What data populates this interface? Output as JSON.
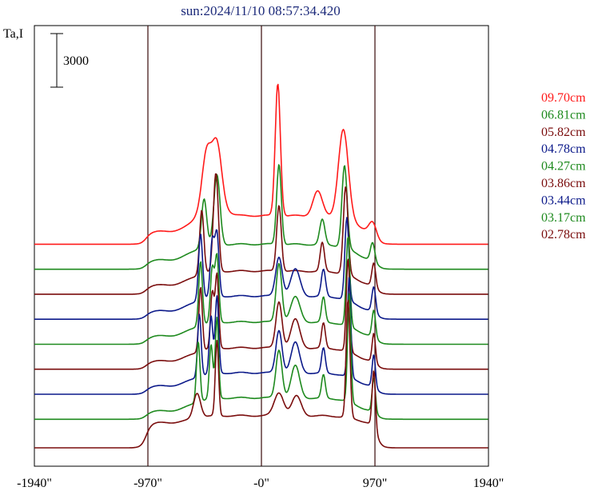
{
  "title": "sun:2024/11/10 08:57:34.420",
  "ylabel": "Ta,I",
  "scalebar_label": "3000",
  "chart_data": {
    "type": "line",
    "title": "sun:2024/11/10 08:57:34.420",
    "ylabel": "Ta,I",
    "scalebar_value": 3000,
    "xlim": [
      -1940,
      1940
    ],
    "x_ticks": [
      {
        "value": -1940,
        "label": "-1940\""
      },
      {
        "value": -970,
        "label": "-970\""
      },
      {
        "value": 0,
        "label": "-0\""
      },
      {
        "value": 970,
        "label": "970\""
      },
      {
        "value": 1940,
        "label": "1940\""
      }
    ],
    "vlines": [
      -970,
      0,
      970
    ],
    "grid": false,
    "legend_position": "right",
    "series": [
      {
        "name": "09.70cm",
        "color": "#ff1a1a",
        "offset": 11400,
        "wing": 700,
        "plat": 1600,
        "peaks": [
          [
            -470,
            2700,
            38
          ],
          [
            -380,
            3050,
            40
          ],
          [
            -420,
            1200,
            80
          ],
          [
            140,
            7400,
            22
          ],
          [
            700,
            5000,
            42
          ],
          [
            480,
            1400,
            40
          ],
          [
            950,
            600,
            30
          ]
        ]
      },
      {
        "name": "06.81cm",
        "color": "#1e8a1e",
        "offset": 10000,
        "wing": 500,
        "plat": 1400,
        "peaks": [
          [
            -490,
            2700,
            22
          ],
          [
            -380,
            3900,
            26
          ],
          [
            150,
            4500,
            20
          ],
          [
            520,
            1400,
            22
          ],
          [
            710,
            4600,
            22
          ],
          [
            950,
            1000,
            18
          ]
        ]
      },
      {
        "name": "05.82cm",
        "color": "#7a0d0d",
        "offset": 8600,
        "wing": 500,
        "plat": 1300,
        "peaks": [
          [
            -510,
            3600,
            18
          ],
          [
            -400,
            3000,
            18
          ],
          [
            -380,
            3400,
            18
          ],
          [
            150,
            3700,
            20
          ],
          [
            520,
            1600,
            18
          ],
          [
            720,
            4900,
            20
          ],
          [
            960,
            1300,
            16
          ]
        ]
      },
      {
        "name": "04.78cm",
        "color": "#0c1a8a",
        "offset": 7200,
        "wing": 450,
        "plat": 1300,
        "peaks": [
          [
            -520,
            3700,
            17
          ],
          [
            -420,
            3100,
            17
          ],
          [
            -380,
            3500,
            17
          ],
          [
            150,
            2200,
            28
          ],
          [
            290,
            1500,
            40
          ],
          [
            530,
            1500,
            18
          ],
          [
            730,
            4600,
            17
          ],
          [
            960,
            1400,
            16
          ]
        ]
      },
      {
        "name": "04.27cm",
        "color": "#1e8a1e",
        "offset": 5800,
        "wing": 450,
        "plat": 1250,
        "peaks": [
          [
            -520,
            3600,
            16
          ],
          [
            -420,
            3000,
            16
          ],
          [
            -380,
            3700,
            16
          ],
          [
            150,
            3300,
            24
          ],
          [
            290,
            1400,
            40
          ],
          [
            530,
            1400,
            16
          ],
          [
            740,
            5000,
            16
          ],
          [
            960,
            1500,
            15
          ]
        ]
      },
      {
        "name": "03.86cm",
        "color": "#7a0d0d",
        "offset": 4400,
        "wing": 450,
        "plat": 1200,
        "peaks": [
          [
            -520,
            3600,
            15
          ],
          [
            -420,
            3100,
            15
          ],
          [
            -380,
            4100,
            15
          ],
          [
            150,
            2600,
            26
          ],
          [
            290,
            1600,
            38
          ],
          [
            530,
            1400,
            16
          ],
          [
            740,
            5200,
            15
          ],
          [
            960,
            1600,
            14
          ]
        ]
      },
      {
        "name": "03.44cm",
        "color": "#0c1a8a",
        "offset": 3000,
        "wing": 450,
        "plat": 1200,
        "peaks": [
          [
            -530,
            3500,
            15
          ],
          [
            -430,
            3200,
            15
          ],
          [
            -380,
            4300,
            15
          ],
          [
            150,
            2400,
            26
          ],
          [
            290,
            1700,
            36
          ],
          [
            530,
            1400,
            16
          ],
          [
            750,
            5600,
            14
          ],
          [
            960,
            1800,
            14
          ]
        ]
      },
      {
        "name": "03.17cm",
        "color": "#1e8a1e",
        "offset": 1600,
        "wing": 450,
        "plat": 1200,
        "peaks": [
          [
            -540,
            3400,
            15
          ],
          [
            -430,
            3000,
            15
          ],
          [
            -380,
            4500,
            14
          ],
          [
            150,
            2700,
            26
          ],
          [
            290,
            1800,
            36
          ],
          [
            530,
            1300,
            16
          ],
          [
            750,
            6100,
            14
          ],
          [
            960,
            1900,
            14
          ]
        ]
      },
      {
        "name": "02.78cm",
        "color": "#7a0d0d",
        "offset": 0,
        "wing": 1400,
        "plat": 1800,
        "peaks": [
          [
            -550,
            1400,
            30
          ],
          [
            -380,
            4200,
            14
          ],
          [
            150,
            1300,
            40
          ],
          [
            300,
            1100,
            40
          ],
          [
            740,
            6600,
            16
          ],
          [
            960,
            3200,
            14
          ]
        ]
      }
    ]
  }
}
